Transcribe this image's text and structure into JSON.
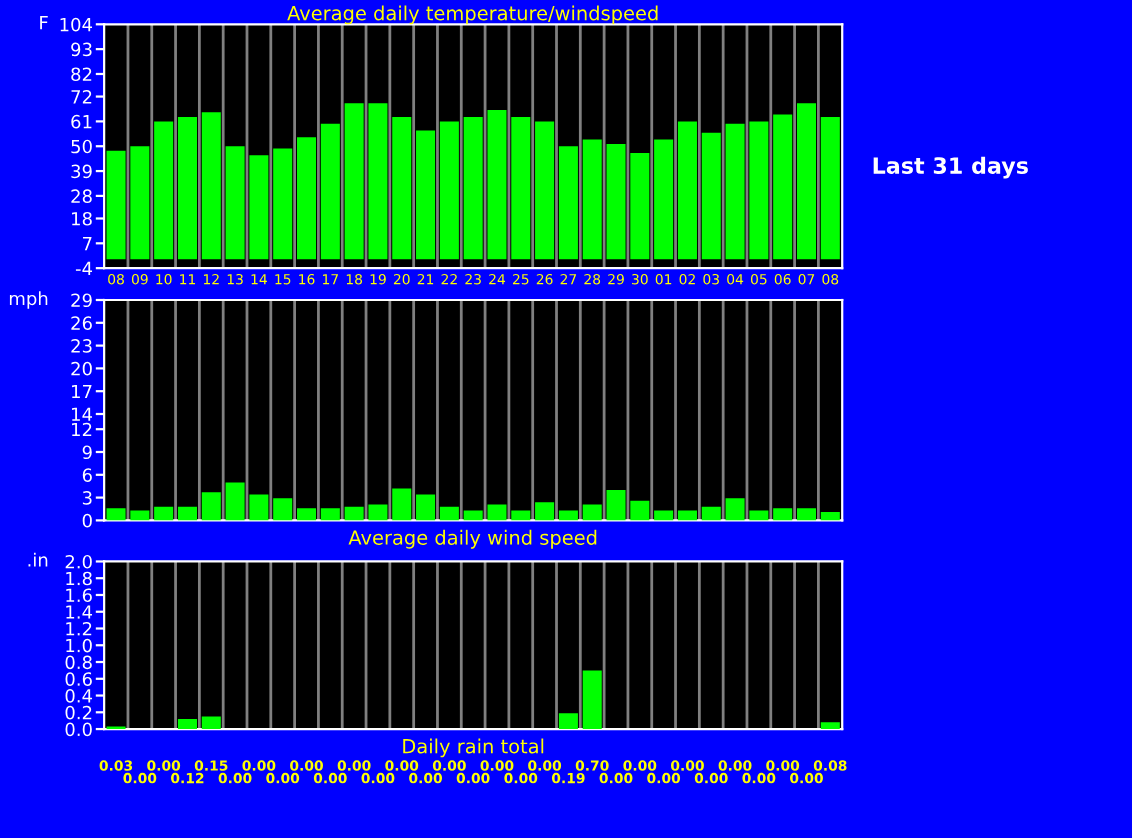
{
  "chart_data": [
    {
      "type": "bar",
      "title": "Average daily temperature/windspeed",
      "ylabel": "F",
      "categories": [
        "08",
        "09",
        "10",
        "11",
        "12",
        "13",
        "14",
        "15",
        "16",
        "17",
        "18",
        "19",
        "20",
        "21",
        "22",
        "23",
        "24",
        "25",
        "26",
        "27",
        "28",
        "29",
        "30",
        "01",
        "02",
        "03",
        "04",
        "05",
        "06",
        "07",
        "08"
      ],
      "values": [
        48,
        50,
        61,
        63,
        65,
        50,
        46,
        49,
        54,
        60,
        69,
        69,
        63,
        57,
        61,
        63,
        66,
        63,
        61,
        50,
        53,
        51,
        47,
        53,
        61,
        56,
        60,
        61,
        64,
        69,
        63
      ],
      "color": "#00ff00",
      "ylim": [
        -4,
        104
      ],
      "yticks": [
        -4,
        7,
        18,
        28,
        39,
        50,
        61,
        72,
        82,
        93,
        104
      ],
      "grid": "x",
      "annotations": [
        "Last 31 days"
      ]
    },
    {
      "type": "bar",
      "xlabel": "Average daily wind speed",
      "ylabel": "mph",
      "categories": [
        null,
        null,
        null,
        null,
        null,
        null,
        null,
        null,
        null,
        null,
        null,
        null,
        null,
        null,
        null,
        null,
        null,
        null,
        null,
        null,
        null,
        null,
        null,
        null,
        null,
        null,
        null,
        null,
        null,
        null,
        null
      ],
      "values": [
        1.6,
        1.3,
        1.8,
        1.8,
        3.7,
        5.0,
        3.4,
        2.9,
        1.6,
        1.6,
        1.8,
        2.1,
        4.2,
        3.4,
        1.8,
        1.3,
        2.1,
        1.3,
        2.4,
        1.3,
        2.1,
        4.0,
        2.6,
        1.3,
        1.3,
        1.8,
        2.9,
        1.3,
        1.6,
        1.6,
        1.1
      ],
      "color": "#00ff00",
      "ylim": [
        0,
        29
      ],
      "yticks": [
        0,
        3,
        6,
        9,
        12,
        14,
        17,
        20,
        23,
        26,
        29
      ],
      "grid": "x",
      "tick_labels": "y"
    },
    {
      "type": "bar",
      "xlabel": "Daily rain total",
      "ylabel": ".in",
      "categories": [
        null,
        null,
        null,
        null,
        null,
        null,
        null,
        null,
        null,
        null,
        null,
        null,
        null,
        null,
        null,
        null,
        null,
        null,
        null,
        null,
        null,
        null,
        null,
        null,
        null,
        null,
        null,
        null,
        null,
        null,
        null
      ],
      "values": [
        0.03,
        0.0,
        0.0,
        0.12,
        0.15,
        0.0,
        0.0,
        0.0,
        0.0,
        0.0,
        0.0,
        0.0,
        0.0,
        0.0,
        0.0,
        0.0,
        0.0,
        0.0,
        0.0,
        0.19,
        0.7,
        0.0,
        0.0,
        0.0,
        0.0,
        0.0,
        0.0,
        0.0,
        0.0,
        0.0,
        0.08
      ],
      "value_labels": [
        "0.03",
        "0.00",
        "0.00",
        "0.12",
        "0.15",
        "0.00",
        "0.00",
        "0.00",
        "0.00",
        "0.00",
        "0.00",
        "0.00",
        "0.00",
        "0.00",
        "0.00",
        "0.00",
        "0.00",
        "0.00",
        "0.00",
        "0.19",
        "0.70",
        "0.00",
        "0.00",
        "0.00",
        "0.00",
        "0.00",
        "0.00",
        "0.00",
        "0.00",
        "0.00",
        "0.08"
      ],
      "color": "#00ff00",
      "ylim": [
        0,
        2.0
      ],
      "yticks": [
        {
          "value": 0,
          "label": "0.0"
        },
        {
          "value": 0.2,
          "label": "0.2"
        },
        {
          "value": 0.4,
          "label": "0.4"
        },
        {
          "value": 0.6,
          "label": "0.6"
        },
        {
          "value": 0.8,
          "label": "0.8"
        },
        {
          "value": 1.0,
          "label": "1.0"
        },
        {
          "value": 1.2,
          "label": "1.2"
        },
        {
          "value": 1.4,
          "label": "1.4"
        },
        {
          "value": 1.6,
          "label": "1.6"
        },
        {
          "value": 1.8,
          "label": "1.8"
        },
        {
          "value": 2.0,
          "label": "2.0"
        }
      ],
      "grid": "x",
      "tick_labels": "y"
    }
  ]
}
